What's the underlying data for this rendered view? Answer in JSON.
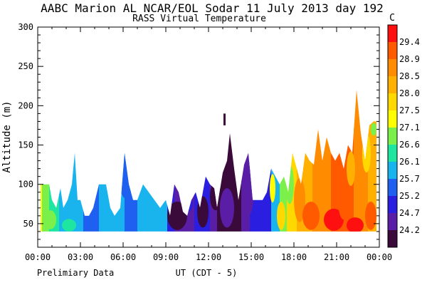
{
  "chart_data": {
    "type": "heatmap",
    "title": "AABC Marion AL  NCAR/EOL Sodar  11 July 2013  day 192",
    "subtitle": "RASS Virtual Temperature",
    "xlabel": "UT  (CDT - 5)",
    "ylabel": "Altitude  (m)",
    "footnote": "Prelimiary Data",
    "x_ticks": [
      "00:00",
      "03:00",
      "06:00",
      "09:00",
      "12:00",
      "15:00",
      "18:00",
      "21:00",
      "00:00"
    ],
    "xlim_hours": [
      0,
      24
    ],
    "y_ticks": [
      50,
      100,
      150,
      200,
      250,
      300
    ],
    "ylim": [
      20,
      300
    ],
    "colorbar": {
      "unit": "C",
      "labels": [
        "29.4",
        "28.9",
        "28.5",
        "28.0",
        "27.5",
        "27.1",
        "26.6",
        "26.1",
        "25.7",
        "25.2",
        "24.7",
        "24.2"
      ],
      "colors": [
        "#ff1010",
        "#ff5a00",
        "#ff8c00",
        "#ffb000",
        "#ffd800",
        "#ffff00",
        "#7cf04a",
        "#1ee6a0",
        "#19b4ee",
        "#2060f0",
        "#2a1ee0",
        "#5a1ea6",
        "#3a0a3a"
      ]
    },
    "gate_bottom_m": 40,
    "profile_top_m": [
      {
        "t": 0.2,
        "top": 100
      },
      {
        "t": 0.5,
        "top": 100
      },
      {
        "t": 0.8,
        "top": 100
      },
      {
        "t": 1.0,
        "top": 80
      },
      {
        "t": 1.3,
        "top": 70
      },
      {
        "t": 1.6,
        "top": 95
      },
      {
        "t": 1.8,
        "top": 70
      },
      {
        "t": 2.1,
        "top": 80
      },
      {
        "t": 2.4,
        "top": 100
      },
      {
        "t": 2.6,
        "top": 140
      },
      {
        "t": 2.8,
        "top": 80
      },
      {
        "t": 3.0,
        "top": 80
      },
      {
        "t": 3.3,
        "top": 60
      },
      {
        "t": 3.6,
        "top": 60
      },
      {
        "t": 3.9,
        "top": 70
      },
      {
        "t": 4.3,
        "top": 100
      },
      {
        "t": 4.8,
        "top": 100
      },
      {
        "t": 5.1,
        "top": 70
      },
      {
        "t": 5.4,
        "top": 60
      },
      {
        "t": 5.8,
        "top": 70
      },
      {
        "t": 6.1,
        "top": 140
      },
      {
        "t": 6.4,
        "top": 100
      },
      {
        "t": 6.7,
        "top": 80
      },
      {
        "t": 7.0,
        "top": 80
      },
      {
        "t": 7.4,
        "top": 100
      },
      {
        "t": 7.8,
        "top": 90
      },
      {
        "t": 8.2,
        "top": 80
      },
      {
        "t": 8.6,
        "top": 70
      },
      {
        "t": 9.0,
        "top": 80
      },
      {
        "t": 9.3,
        "top": 60
      },
      {
        "t": 9.6,
        "top": 100
      },
      {
        "t": 9.9,
        "top": 90
      },
      {
        "t": 10.2,
        "top": 65
      },
      {
        "t": 10.5,
        "top": 60
      },
      {
        "t": 10.8,
        "top": 80
      },
      {
        "t": 11.1,
        "top": 90
      },
      {
        "t": 11.4,
        "top": 70
      },
      {
        "t": 11.8,
        "top": 110
      },
      {
        "t": 12.1,
        "top": 100
      },
      {
        "t": 12.4,
        "top": 95
      },
      {
        "t": 12.6,
        "top": 70
      },
      {
        "t": 13.0,
        "top": 115
      },
      {
        "t": 13.3,
        "top": 130
      },
      {
        "t": 13.5,
        "top": 165
      },
      {
        "t": 13.8,
        "top": 120
      },
      {
        "t": 14.1,
        "top": 80
      },
      {
        "t": 14.5,
        "top": 125
      },
      {
        "t": 14.8,
        "top": 140
      },
      {
        "t": 15.1,
        "top": 80
      },
      {
        "t": 15.5,
        "top": 80
      },
      {
        "t": 15.8,
        "top": 80
      },
      {
        "t": 16.1,
        "top": 90
      },
      {
        "t": 16.4,
        "top": 120
      },
      {
        "t": 16.7,
        "top": 110
      },
      {
        "t": 17.0,
        "top": 100
      },
      {
        "t": 17.3,
        "top": 110
      },
      {
        "t": 17.6,
        "top": 90
      },
      {
        "t": 17.9,
        "top": 140
      },
      {
        "t": 18.2,
        "top": 120
      },
      {
        "t": 18.5,
        "top": 100
      },
      {
        "t": 18.8,
        "top": 140
      },
      {
        "t": 19.1,
        "top": 130
      },
      {
        "t": 19.4,
        "top": 125
      },
      {
        "t": 19.7,
        "top": 170
      },
      {
        "t": 20.0,
        "top": 130
      },
      {
        "t": 20.3,
        "top": 160
      },
      {
        "t": 20.6,
        "top": 140
      },
      {
        "t": 20.9,
        "top": 130
      },
      {
        "t": 21.2,
        "top": 140
      },
      {
        "t": 21.5,
        "top": 120
      },
      {
        "t": 21.8,
        "top": 150
      },
      {
        "t": 22.1,
        "top": 140
      },
      {
        "t": 22.4,
        "top": 220
      },
      {
        "t": 22.7,
        "top": 165
      },
      {
        "t": 23.0,
        "top": 130
      },
      {
        "t": 23.3,
        "top": 175
      },
      {
        "t": 23.6,
        "top": 180
      },
      {
        "t": 23.8,
        "top": 180
      }
    ],
    "isolated_echo": {
      "t": 13.1,
      "bottom": 175,
      "top": 190,
      "bin": 12
    },
    "temperature_regions": [
      {
        "t_from": 0.0,
        "t_to": 0.3,
        "bin": 5
      },
      {
        "t_from": 0.3,
        "t_to": 0.8,
        "bin": 6
      },
      {
        "t_from": 0.8,
        "t_to": 1.5,
        "bin": 7
      },
      {
        "t_from": 1.5,
        "t_to": 3.2,
        "bin": 8
      },
      {
        "t_from": 3.2,
        "t_to": 4.3,
        "bin": 9
      },
      {
        "t_from": 4.3,
        "t_to": 6.1,
        "bin": 8
      },
      {
        "t_from": 6.1,
        "t_to": 7.0,
        "bin": 9
      },
      {
        "t_from": 7.0,
        "t_to": 9.1,
        "bin": 8
      },
      {
        "t_from": 9.1,
        "t_to": 9.6,
        "bin": 10
      },
      {
        "t_from": 9.6,
        "t_to": 11.0,
        "bin": 11
      },
      {
        "t_from": 11.0,
        "t_to": 12.1,
        "bin": 10
      },
      {
        "t_from": 12.1,
        "t_to": 12.6,
        "bin": 11
      },
      {
        "t_from": 12.6,
        "t_to": 14.3,
        "bin": 12
      },
      {
        "t_from": 14.3,
        "t_to": 14.9,
        "bin": 11
      },
      {
        "t_from": 14.9,
        "t_to": 16.4,
        "bin": 10
      },
      {
        "t_from": 16.4,
        "t_to": 17.0,
        "bin": 8
      },
      {
        "t_from": 17.0,
        "t_to": 17.5,
        "bin": 6
      },
      {
        "t_from": 17.5,
        "t_to": 18.2,
        "bin": 4
      },
      {
        "t_from": 18.2,
        "t_to": 19.3,
        "bin": 3
      },
      {
        "t_from": 19.3,
        "t_to": 20.6,
        "bin": 2
      },
      {
        "t_from": 20.6,
        "t_to": 22.2,
        "bin": 1
      },
      {
        "t_from": 22.2,
        "t_to": 23.2,
        "bin": 2
      },
      {
        "t_from": 23.2,
        "t_to": 24.0,
        "bin": 3
      }
    ],
    "temperature_blotches": [
      {
        "t": 0.9,
        "y": 55,
        "rt": 0.4,
        "ry": 12,
        "bin": 6
      },
      {
        "t": 2.2,
        "y": 48,
        "rt": 0.5,
        "ry": 8,
        "bin": 7
      },
      {
        "t": 6.2,
        "y": 110,
        "rt": 0.5,
        "ry": 28,
        "bin": 9
      },
      {
        "t": 9.8,
        "y": 60,
        "rt": 0.7,
        "ry": 18,
        "bin": 12
      },
      {
        "t": 11.6,
        "y": 65,
        "rt": 0.4,
        "ry": 20,
        "bin": 12
      },
      {
        "t": 12.5,
        "y": 85,
        "rt": 0.4,
        "ry": 18,
        "bin": 12
      },
      {
        "t": 14.8,
        "y": 95,
        "rt": 0.4,
        "ry": 35,
        "bin": 11
      },
      {
        "t": 16.5,
        "y": 95,
        "rt": 0.2,
        "ry": 18,
        "bin": 5
      },
      {
        "t": 17.1,
        "y": 60,
        "rt": 0.3,
        "ry": 18,
        "bin": 4
      },
      {
        "t": 17.7,
        "y": 100,
        "rt": 0.3,
        "ry": 25,
        "bin": 6
      },
      {
        "t": 18.4,
        "y": 80,
        "rt": 0.4,
        "ry": 28,
        "bin": 2
      },
      {
        "t": 19.2,
        "y": 60,
        "rt": 0.6,
        "ry": 18,
        "bin": 1
      },
      {
        "t": 20.8,
        "y": 55,
        "rt": 0.7,
        "ry": 14,
        "bin": 0
      },
      {
        "t": 21.5,
        "y": 80,
        "rt": 0.4,
        "ry": 25,
        "bin": 1
      },
      {
        "t": 22.3,
        "y": 48,
        "rt": 0.6,
        "ry": 10,
        "bin": 0
      },
      {
        "t": 22.0,
        "y": 120,
        "rt": 0.3,
        "ry": 22,
        "bin": 3
      },
      {
        "t": 23.4,
        "y": 60,
        "rt": 0.4,
        "ry": 18,
        "bin": 1
      },
      {
        "t": 23.1,
        "y": 140,
        "rt": 0.3,
        "ry": 25,
        "bin": 4
      },
      {
        "t": 23.6,
        "y": 170,
        "rt": 0.2,
        "ry": 8,
        "bin": 6
      },
      {
        "t": 13.3,
        "y": 70,
        "rt": 0.5,
        "ry": 25,
        "bin": 11
      },
      {
        "t": 10.5,
        "y": 75,
        "rt": 0.4,
        "ry": 10,
        "bin": 10
      }
    ]
  }
}
